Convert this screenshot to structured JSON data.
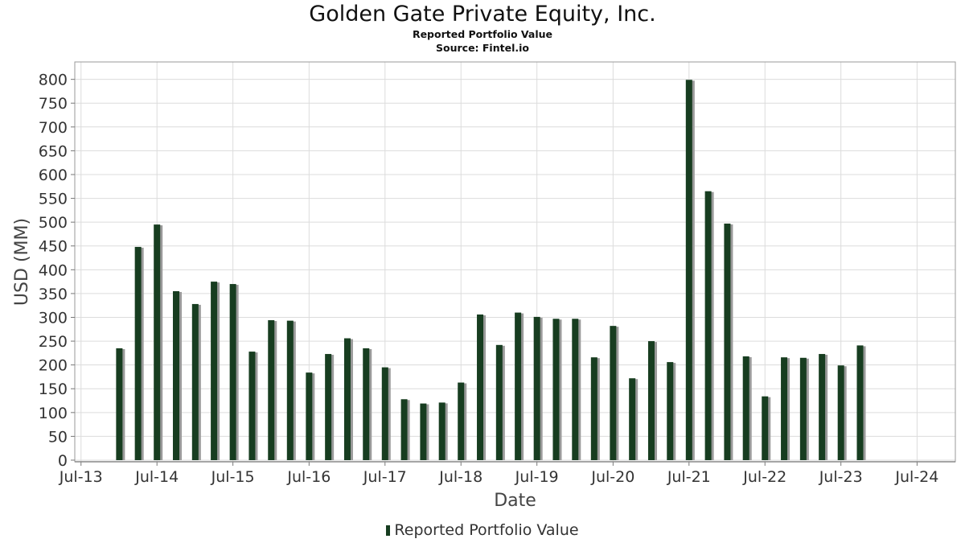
{
  "chart_data": {
    "type": "bar",
    "title": "Golden Gate Private Equity, Inc.",
    "subtitle": "Reported Portfolio Value",
    "source": "Source: Fintel.io",
    "xlabel": "Date",
    "ylabel": "USD (MM)",
    "ylim": [
      0,
      810
    ],
    "yticks": [
      0,
      50,
      100,
      150,
      200,
      250,
      300,
      350,
      400,
      450,
      500,
      550,
      600,
      650,
      700,
      750,
      800
    ],
    "xlim": [
      "2013-06-01",
      "2025-01-01"
    ],
    "xticks": [
      {
        "date": "2013-07-01",
        "label": "Jul-13"
      },
      {
        "date": "2014-07-01",
        "label": "Jul-14"
      },
      {
        "date": "2015-07-01",
        "label": "Jul-15"
      },
      {
        "date": "2016-07-01",
        "label": "Jul-16"
      },
      {
        "date": "2017-07-01",
        "label": "Jul-17"
      },
      {
        "date": "2018-07-01",
        "label": "Jul-18"
      },
      {
        "date": "2019-07-01",
        "label": "Jul-19"
      },
      {
        "date": "2020-07-01",
        "label": "Jul-20"
      },
      {
        "date": "2021-07-01",
        "label": "Jul-21"
      },
      {
        "date": "2022-07-01",
        "label": "Jul-22"
      },
      {
        "date": "2023-07-01",
        "label": "Jul-23"
      },
      {
        "date": "2024-07-01",
        "label": "Jul-24"
      }
    ],
    "grid": true,
    "legend_position": "bottom",
    "series": [
      {
        "name": "Reported Portfolio Value",
        "color": "#173d20",
        "x": [
          "2014-01-01",
          "2014-04-01",
          "2014-07-01",
          "2014-10-01",
          "2015-01-01",
          "2015-04-01",
          "2015-07-01",
          "2015-10-01",
          "2016-01-01",
          "2016-04-01",
          "2016-07-01",
          "2016-10-01",
          "2017-01-01",
          "2017-04-01",
          "2017-07-01",
          "2017-10-01",
          "2018-01-01",
          "2018-04-01",
          "2018-07-01",
          "2018-10-01",
          "2019-01-01",
          "2019-04-01",
          "2019-07-01",
          "2019-10-01",
          "2020-01-01",
          "2020-04-01",
          "2020-07-01",
          "2020-10-01",
          "2021-01-01",
          "2021-04-01",
          "2021-07-01",
          "2021-10-01",
          "2022-01-01",
          "2022-04-01",
          "2022-07-01",
          "2022-10-01",
          "2023-01-01",
          "2023-04-01",
          "2023-07-01",
          "2023-10-01"
        ],
        "values": [
          235,
          448,
          495,
          355,
          328,
          375,
          370,
          228,
          294,
          293,
          184,
          223,
          256,
          235,
          195,
          128,
          119,
          121,
          163,
          306,
          242,
          310,
          301,
          297,
          297,
          216,
          282,
          172,
          250,
          206,
          799,
          565,
          497,
          218,
          134,
          216,
          215,
          223,
          199,
          241
        ]
      }
    ]
  }
}
